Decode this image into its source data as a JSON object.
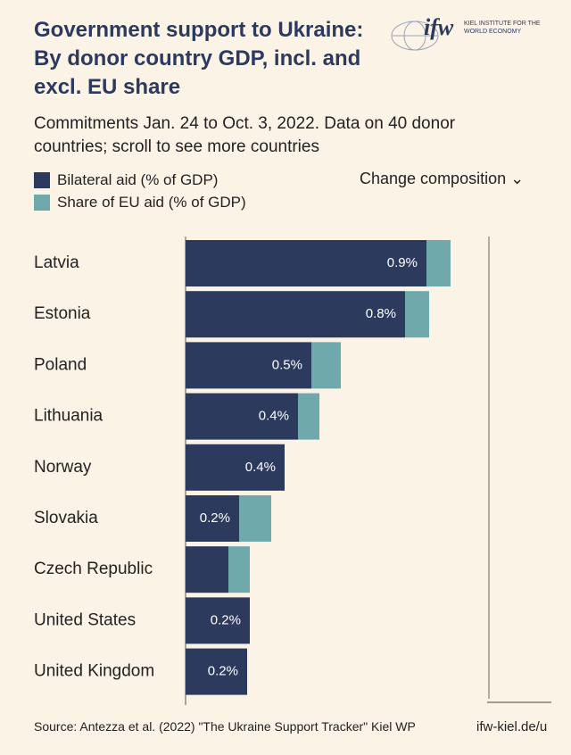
{
  "logo": {
    "mark": "ifw",
    "name": "KIEL INSTITUTE FOR THE WORLD ECONOMY"
  },
  "control": "Change composition",
  "chart_data": {
    "type": "stacked-barh",
    "title": "Government support to Ukraine: By donor country GDP, incl. and excl. EU share",
    "subtitle": "Commitments Jan. 24 to Oct. 3, 2022. Data on 40 donor countries; scroll to see more countries",
    "categories": [
      "Latvia",
      "Estonia",
      "Poland",
      "Lithuania",
      "Norway",
      "Slovakia",
      "Czech Republic",
      "United States",
      "United Kingdom"
    ],
    "series": [
      {
        "name": "Bilateral aid (% of GDP)",
        "color": "#2c3a5e",
        "values": [
          0.9,
          0.82,
          0.47,
          0.42,
          0.37,
          0.2,
          0.16,
          0.24,
          0.23
        ],
        "value_labels": [
          "0.9%",
          "0.8%",
          "0.5%",
          "0.4%",
          "0.4%",
          "0.2%",
          null,
          "0.2%",
          "0.2%"
        ]
      },
      {
        "name": "Share of EU aid (% of GDP)",
        "color": "#6fa9ac",
        "values": [
          0.09,
          0.09,
          0.11,
          0.08,
          0,
          0.12,
          0.08,
          0,
          0
        ]
      }
    ],
    "xlim": [
      0,
      1.4
    ],
    "source": "Source: Antezza et al. (2022) \"The Ukraine Support Tracker\" Kiel WP",
    "link": "ifw-kiel.de/u"
  }
}
